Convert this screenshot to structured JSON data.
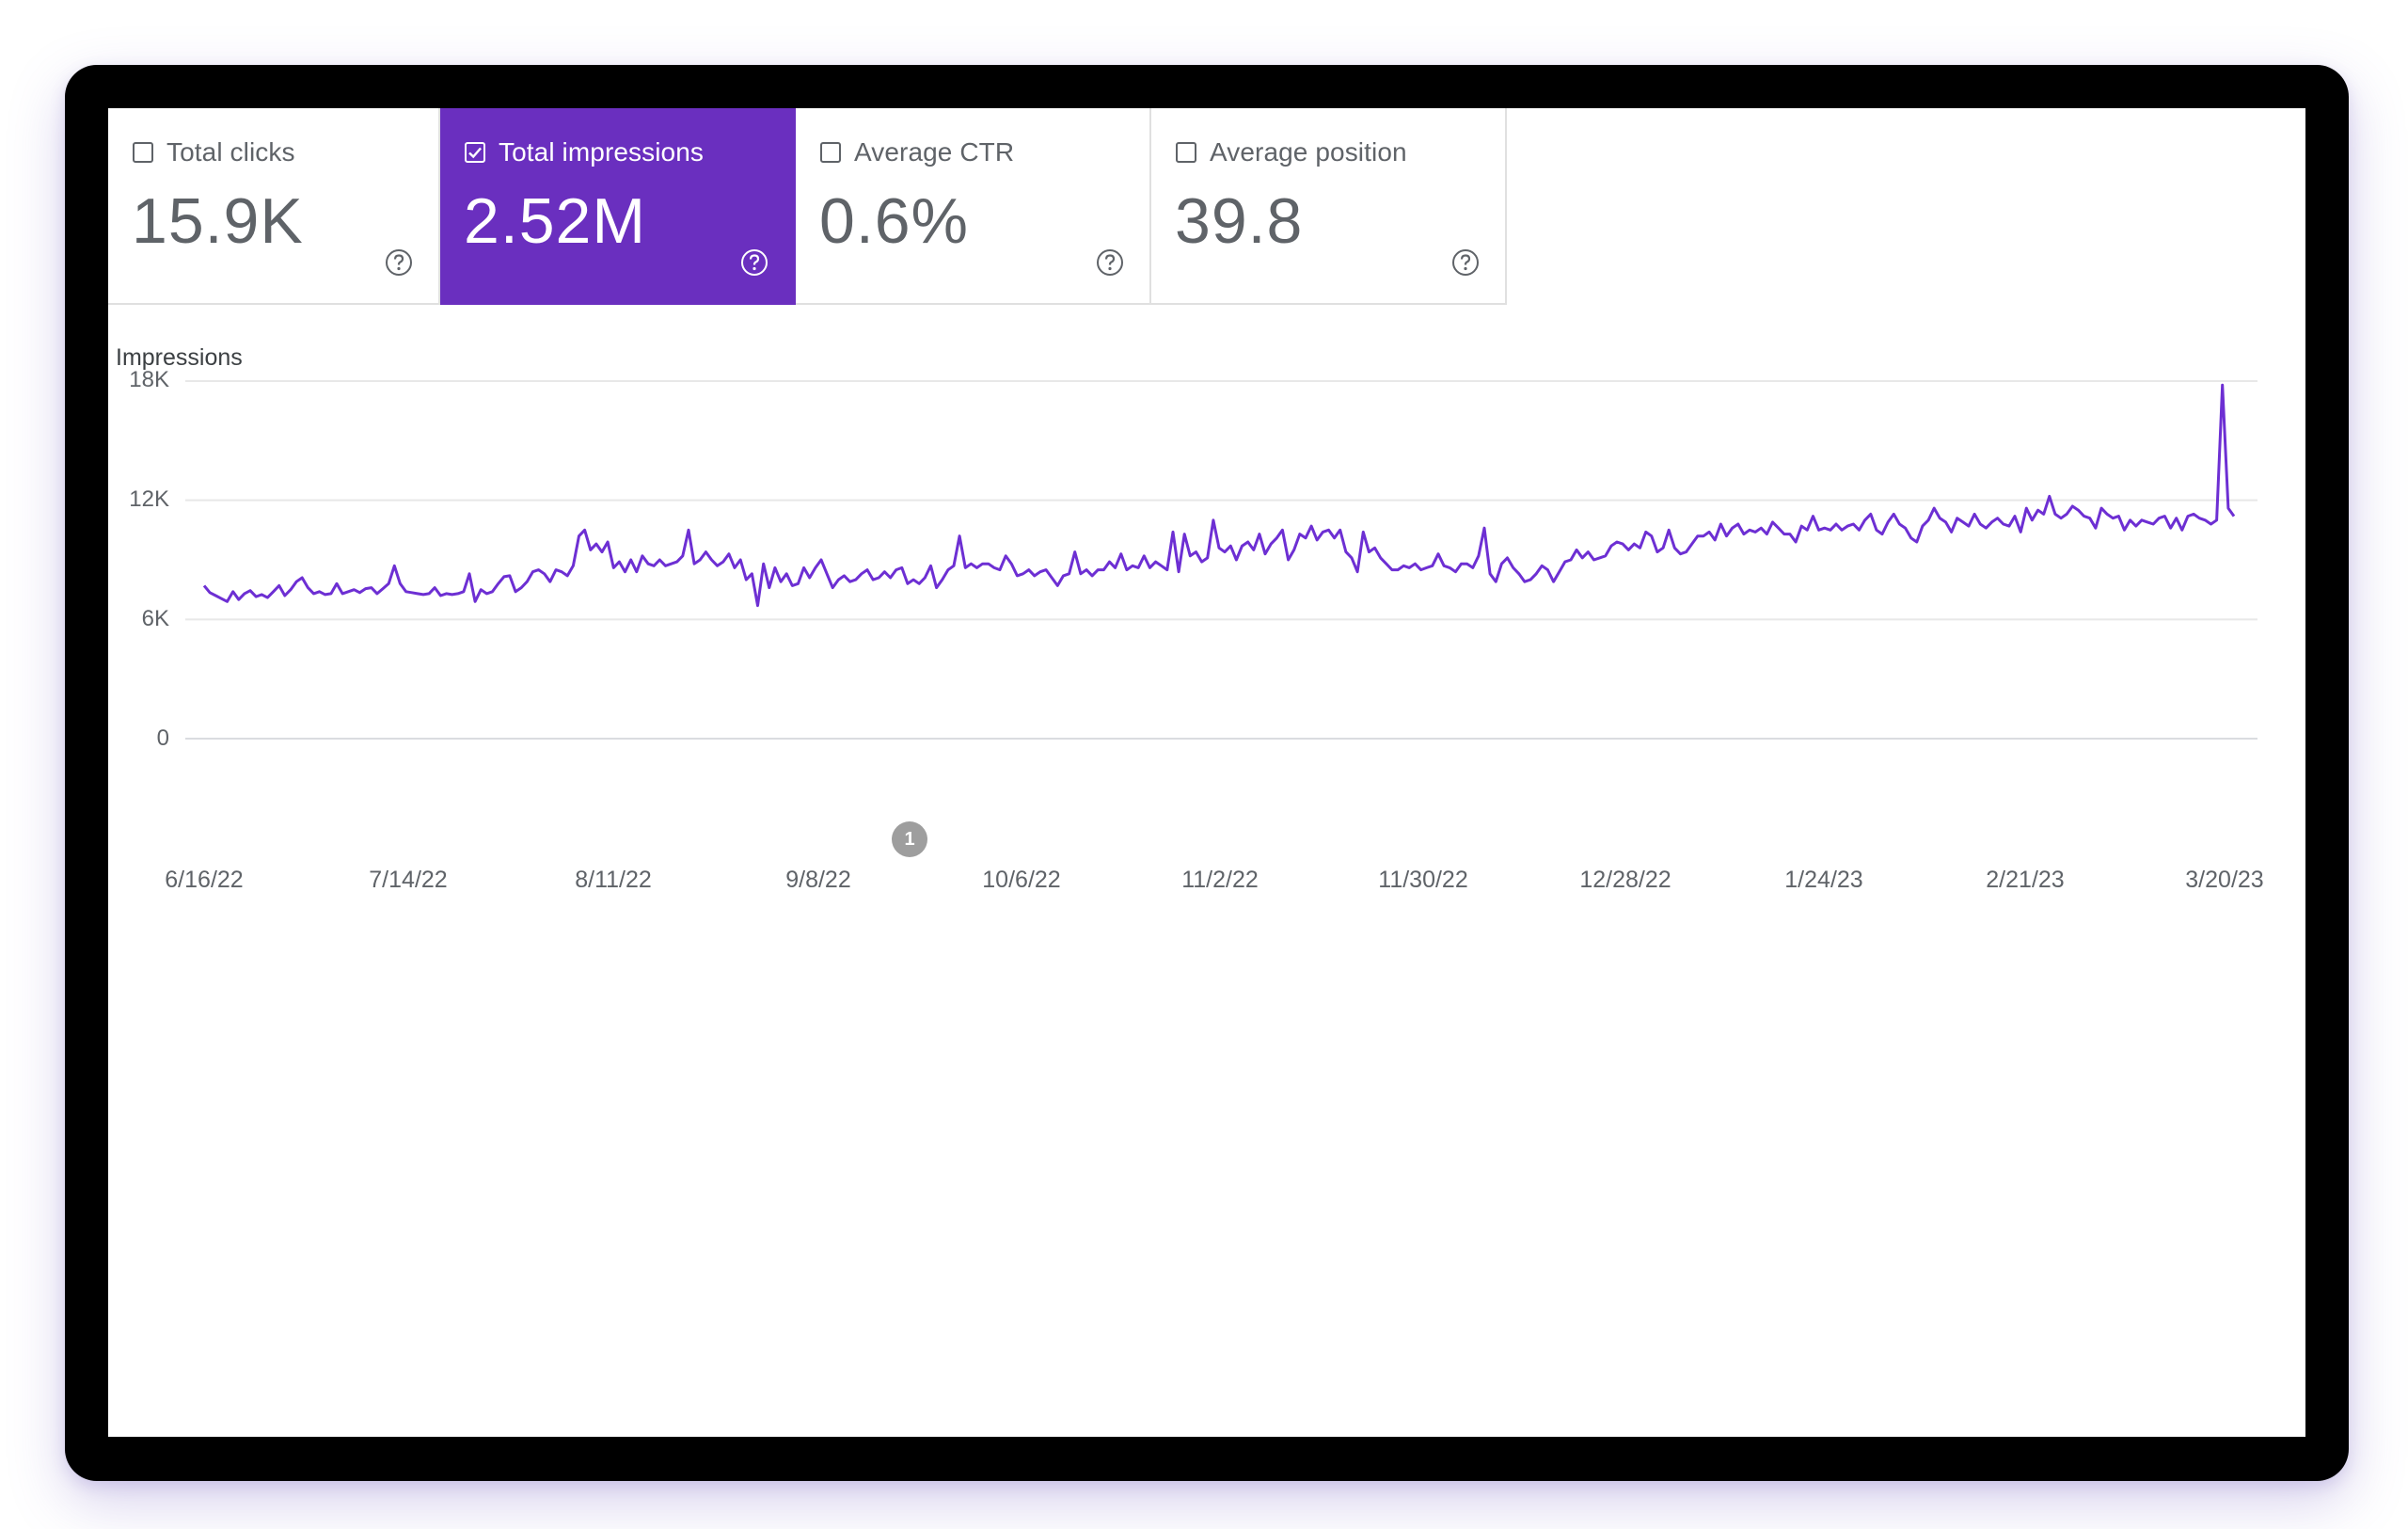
{
  "metrics": [
    {
      "label": "Total clicks",
      "value": "15.9K",
      "selected": false
    },
    {
      "label": "Total impressions",
      "value": "2.52M",
      "selected": true
    },
    {
      "label": "Average CTR",
      "value": "0.6%",
      "selected": false
    },
    {
      "label": "Average position",
      "value": "39.8",
      "selected": false
    }
  ],
  "colors": {
    "accent": "#6a2fbf",
    "line": "#6d2fd3",
    "grid": "#e8e8e8",
    "frame": "#000000"
  },
  "chart_data": {
    "type": "line",
    "ylabel": "Impressions",
    "yticks": [
      "0",
      "6K",
      "12K",
      "18K"
    ],
    "ylim": [
      0,
      18000
    ],
    "grid": "horizontal",
    "x_tick_labels": [
      "6/16/22",
      "7/14/22",
      "8/11/22",
      "9/8/22",
      "10/6/22",
      "11/2/22",
      "11/30/22",
      "12/28/22",
      "1/24/23",
      "2/21/23",
      "3/20/23"
    ],
    "x_range": [
      "2022-06-16",
      "2023-03-21"
    ],
    "annotations": [
      {
        "label": "1",
        "date": "2022-09-20"
      }
    ],
    "series": [
      {
        "values": [
          7700,
          7350,
          7200,
          7050,
          6900,
          7400,
          7000,
          7300,
          7450,
          7150,
          7250,
          7100,
          7400,
          7700,
          7200,
          7500,
          7900,
          8100,
          7600,
          7300,
          7400,
          7250,
          7300,
          7800,
          7300,
          7400,
          7500,
          7350,
          7550,
          7600,
          7300,
          7550,
          7800,
          8700,
          7800,
          7400,
          7350,
          7300,
          7250,
          7300,
          7600,
          7200,
          7300,
          7250,
          7300,
          7400,
          8300,
          6900,
          7500,
          7300,
          7400,
          7800,
          8150,
          8200,
          7400,
          7600,
          7900,
          8400,
          8500,
          8300,
          7900,
          8500,
          8400,
          8200,
          8700,
          10200,
          10500,
          9500,
          9800,
          9400,
          9900,
          8600,
          8900,
          8400,
          9000,
          8400,
          9200,
          8800,
          8700,
          9000,
          8700,
          8800,
          8900,
          9200,
          10500,
          8800,
          9000,
          9400,
          9000,
          8700,
          8900,
          9300,
          8600,
          9000,
          8000,
          8300,
          6700,
          8800,
          7600,
          8600,
          7900,
          8300,
          7700,
          7800,
          8600,
          8100,
          8600,
          9000,
          8300,
          7600,
          8000,
          8200,
          7900,
          8000,
          8300,
          8500,
          8000,
          8100,
          8400,
          8100,
          8500,
          8600,
          7800,
          8000,
          7800,
          8100,
          8700,
          7600,
          8000,
          8500,
          8700,
          10200,
          8600,
          8800,
          8600,
          8800,
          8800,
          8600,
          8500,
          9200,
          8800,
          8200,
          8300,
          8500,
          8200,
          8400,
          8500,
          8100,
          7700,
          8200,
          8300,
          9400,
          8300,
          8500,
          8200,
          8500,
          8500,
          8900,
          8600,
          9300,
          8500,
          8700,
          8600,
          9200,
          8600,
          8900,
          8700,
          8500,
          10400,
          8400,
          10300,
          9200,
          9400,
          8900,
          9100,
          11000,
          9600,
          9400,
          9700,
          9000,
          9700,
          9900,
          9500,
          10300,
          9300,
          9800,
          10100,
          10500,
          9000,
          9500,
          10300,
          10100,
          10700,
          10000,
          10400,
          10500,
          10100,
          10500,
          9400,
          9100,
          8400,
          10400,
          9400,
          9600,
          9100,
          8800,
          8500,
          8500,
          8700,
          8600,
          8800,
          8500,
          8600,
          8700,
          9300,
          8700,
          8600,
          8400,
          8800,
          8800,
          8600,
          9200,
          10600,
          8300,
          7900,
          8800,
          9100,
          8600,
          8300,
          7900,
          8000,
          8300,
          8700,
          8500,
          7900,
          8400,
          8900,
          9000,
          9500,
          9100,
          9400,
          9000,
          9100,
          9200,
          9700,
          9900,
          9800,
          9500,
          9800,
          9600,
          10400,
          10200,
          9400,
          9600,
          10500,
          9600,
          9300,
          9400,
          9800,
          10200,
          10200,
          10400,
          10000,
          10800,
          10200,
          10600,
          10800,
          10300,
          10500,
          10400,
          10600,
          10300,
          10900,
          10600,
          10300,
          10300,
          9900,
          10700,
          10500,
          11200,
          10500,
          10600,
          10500,
          10800,
          10500,
          10700,
          10800,
          10500,
          11000,
          11300,
          10500,
          10300,
          10900,
          11300,
          10800,
          10600,
          10100,
          9900,
          10700,
          11000,
          11600,
          11100,
          10900,
          10400,
          11100,
          10900,
          10700,
          11300,
          10800,
          10600,
          10900,
          11100,
          10800,
          10700,
          11200,
          10400,
          11600,
          11000,
          11500,
          11300,
          12200,
          11300,
          11100,
          11300,
          11700,
          11500,
          11200,
          11100,
          10600,
          11600,
          11300,
          11100,
          11200,
          10500,
          11000,
          10700,
          11000,
          10900,
          10800,
          11100,
          11200,
          10600,
          11100,
          10500,
          11200,
          11300,
          11100,
          11000,
          10800,
          11000,
          17800,
          11600,
          11200
        ]
      }
    ]
  }
}
